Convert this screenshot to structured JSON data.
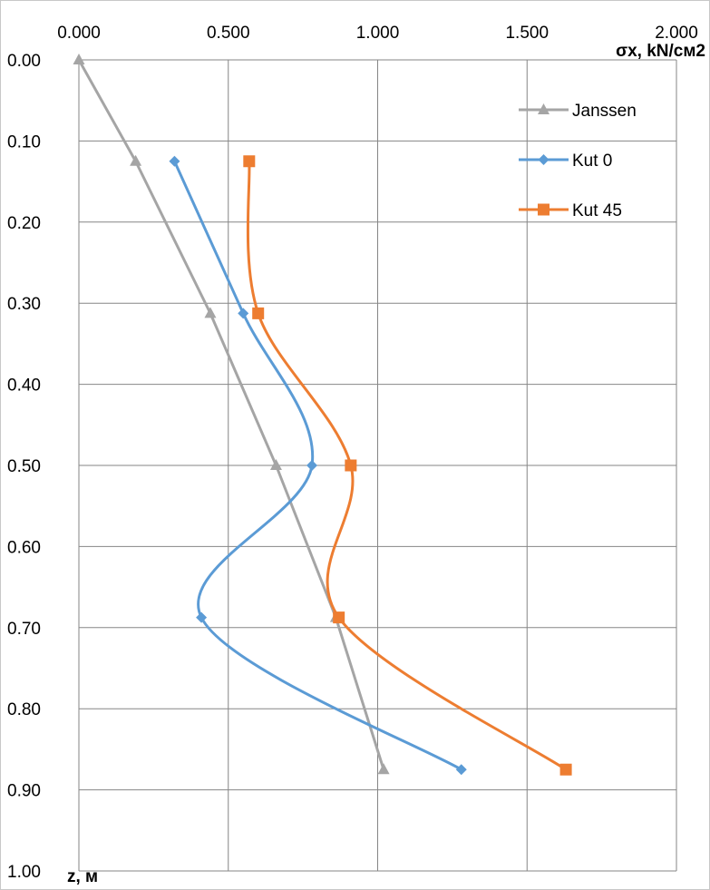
{
  "chart_data": {
    "type": "line",
    "orientation": "y-down",
    "title": "",
    "xlabel": "σx, kN/см2",
    "ylabel": "z, м",
    "x_axis_position": "top",
    "xlim": [
      0,
      2
    ],
    "ylim": [
      0,
      1
    ],
    "x_ticks": [
      "0.000",
      "0.500",
      "1.000",
      "1.500",
      "2.000"
    ],
    "x_tick_values": [
      0,
      0.5,
      1.0,
      1.5,
      2.0
    ],
    "y_ticks": [
      "0.00",
      "0.10",
      "0.20",
      "0.30",
      "0.40",
      "0.50",
      "0.60",
      "0.70",
      "0.80",
      "0.90",
      "1.00"
    ],
    "y_tick_values": [
      0,
      0.1,
      0.2,
      0.3,
      0.4,
      0.5,
      0.6,
      0.7,
      0.8,
      0.9,
      1.0
    ],
    "grid": true,
    "legend_position": "top-right",
    "series": [
      {
        "name": "Janssen",
        "color": "#a5a5a5",
        "marker": "triangle",
        "smooth": false,
        "points": [
          [
            0.0,
            0.0
          ],
          [
            0.19,
            0.125
          ],
          [
            0.44,
            0.3125
          ],
          [
            0.66,
            0.5
          ],
          [
            0.86,
            0.6875
          ],
          [
            1.02,
            0.875
          ]
        ]
      },
      {
        "name": "Kut 0",
        "color": "#5b9bd5",
        "marker": "diamond",
        "smooth": true,
        "points": [
          [
            0.32,
            0.125
          ],
          [
            0.55,
            0.3125
          ],
          [
            0.78,
            0.5
          ],
          [
            0.41,
            0.6875
          ],
          [
            1.28,
            0.875
          ]
        ]
      },
      {
        "name": "Kut 45",
        "color": "#ed7d31",
        "marker": "square",
        "smooth": true,
        "points": [
          [
            0.57,
            0.125
          ],
          [
            0.6,
            0.3125
          ],
          [
            0.91,
            0.5
          ],
          [
            0.87,
            0.6875
          ],
          [
            1.63,
            0.875
          ]
        ]
      }
    ]
  }
}
